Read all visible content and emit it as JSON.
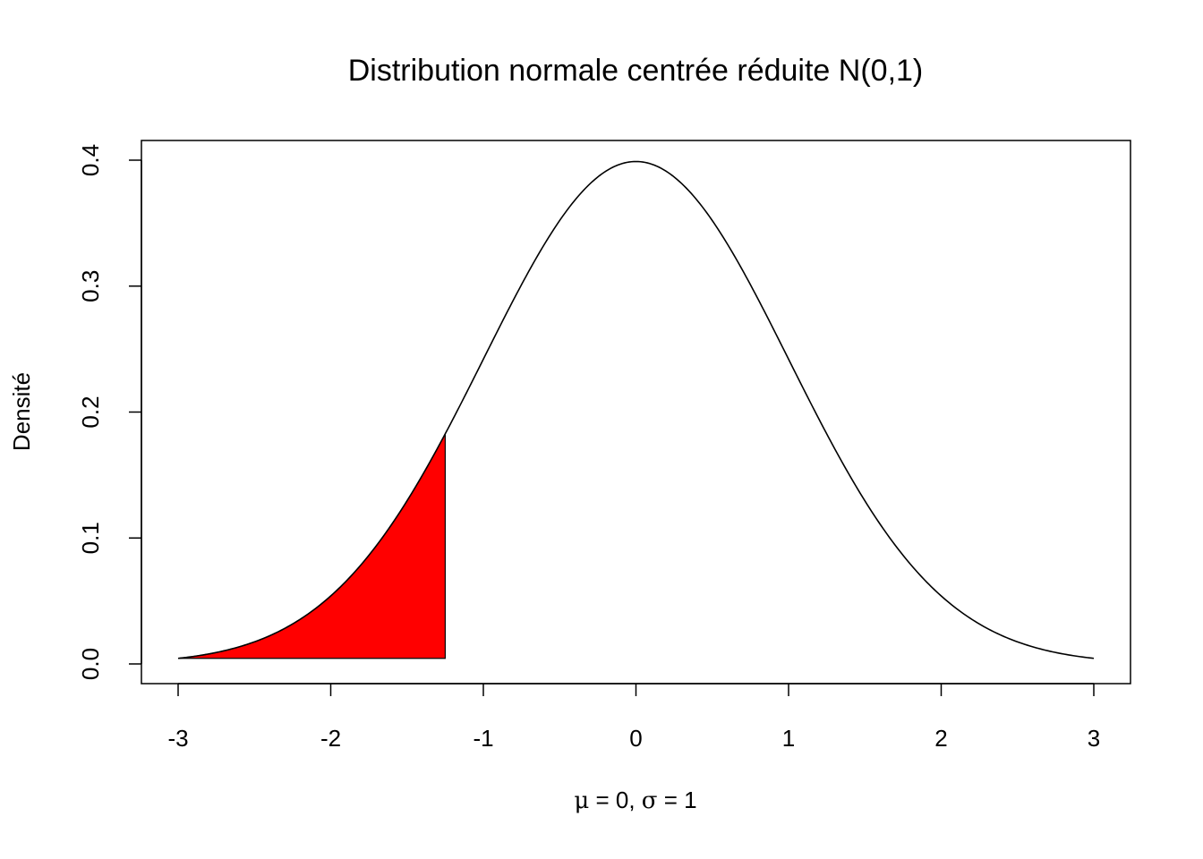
{
  "chart_data": {
    "type": "line",
    "title": "Distribution normale centrée réduite N(0,1)",
    "xlabel": {
      "parts": [
        {
          "text": "μ",
          "greek": true
        },
        {
          "text": " = 0, ",
          "greek": false
        },
        {
          "text": "σ",
          "greek": true
        },
        {
          "text": " = 1",
          "greek": false
        }
      ]
    },
    "ylabel": "Densité",
    "xlim": [
      -3,
      3
    ],
    "ylim": [
      0,
      0.4
    ],
    "xticks": [
      -3,
      -2,
      -1,
      0,
      1,
      2,
      3
    ],
    "xtick_labels": [
      "-3",
      "-2",
      "-1",
      "0",
      "1",
      "2",
      "3"
    ],
    "yticks": [
      0,
      0.1,
      0.2,
      0.3,
      0.4
    ],
    "ytick_labels": [
      "0.0",
      "0.1",
      "0.2",
      "0.3",
      "0.4"
    ],
    "grid": false,
    "legend": "none",
    "series": [
      {
        "distribution": "normal",
        "mean": 0,
        "sd": 1,
        "x_range": [
          -3,
          3
        ],
        "color": "#000000"
      }
    ],
    "shaded_region": {
      "x_from": -3,
      "x_to": -1.25,
      "fill": "#ff0000",
      "stroke": "#000000"
    }
  }
}
